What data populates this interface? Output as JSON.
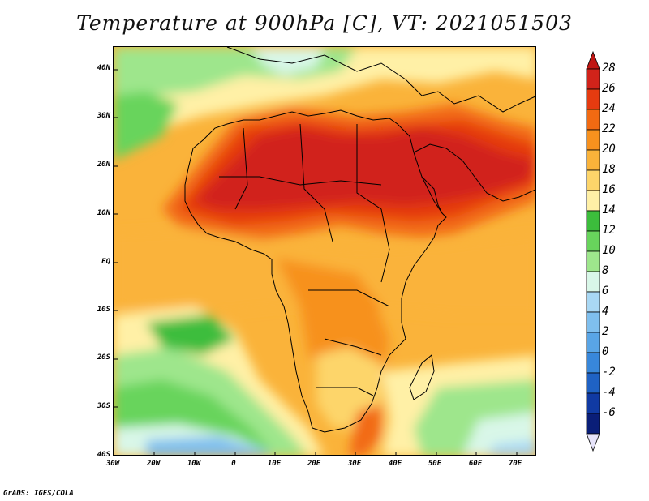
{
  "title": "Temperature at 900hPa [C], VT: 2021051503",
  "credit": "GrADS: IGES/COLA",
  "map": {
    "lon_range": [
      -30,
      75
    ],
    "lat_range": [
      -40,
      45
    ],
    "lat_ticks": [
      "40N",
      "30N",
      "20N",
      "10N",
      "EQ",
      "10S",
      "20S",
      "30S",
      "40S"
    ],
    "lon_ticks": [
      "30W",
      "20W",
      "10W",
      "0",
      "10E",
      "20E",
      "30E",
      "40E",
      "50E",
      "60E",
      "70E"
    ]
  },
  "colorbar": {
    "levels": [
      "28",
      "26",
      "24",
      "22",
      "20",
      "18",
      "16",
      "14",
      "12",
      "10",
      "8",
      "6",
      "4",
      "2",
      "0",
      "-2",
      "-4",
      "-6"
    ],
    "colors": [
      "#d1231a",
      "#e53b10",
      "#f26a12",
      "#f7911e",
      "#fab33a",
      "#fdd56a",
      "#fff0a6",
      "#3cbd3c",
      "#68d45c",
      "#9ee68c",
      "#d9f7e8",
      "#a9d8f4",
      "#7fbfee",
      "#59a5e6",
      "#3887da",
      "#1f62c4",
      "#103aa3",
      "#0a1e78"
    ],
    "extend_top_color": "#c01714",
    "extend_bottom_color": "#e7e4fb"
  }
}
